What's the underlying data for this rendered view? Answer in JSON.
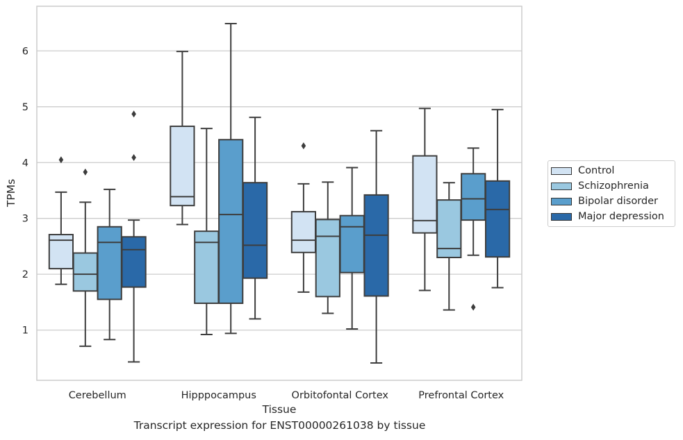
{
  "caption": "Transcript expression for ENST00000261038 by tissue",
  "chart_data": {
    "type": "box",
    "xlabel": "Tissue",
    "ylabel": "TPMs",
    "ylim": [
      0.1,
      6.8
    ],
    "yticks": [
      1,
      2,
      3,
      4,
      5,
      6
    ],
    "grid": "horizontal",
    "legend_position": "right",
    "categories": [
      "Cerebellum",
      "Hipppocampus",
      "Orbitofontal Cortex",
      "Prefrontal Cortex"
    ],
    "series": [
      {
        "name": "Control",
        "color": "#d2e3f3",
        "boxes": [
          {
            "whislo": 1.82,
            "q1": 2.1,
            "med": 2.61,
            "q3": 2.71,
            "whishi": 3.47,
            "fliers": [
              4.05
            ]
          },
          {
            "whislo": 2.89,
            "q1": 3.23,
            "med": 3.39,
            "q3": 4.65,
            "whishi": 5.99,
            "fliers": []
          },
          {
            "whislo": 1.68,
            "q1": 2.39,
            "med": 2.61,
            "q3": 3.12,
            "whishi": 3.62,
            "fliers": [
              4.3
            ]
          },
          {
            "whislo": 1.71,
            "q1": 2.74,
            "med": 2.96,
            "q3": 4.12,
            "whishi": 4.97,
            "fliers": []
          }
        ]
      },
      {
        "name": "Schizophrenia",
        "color": "#9ac8e0",
        "boxes": [
          {
            "whislo": 0.71,
            "q1": 1.7,
            "med": 2.0,
            "q3": 2.38,
            "whishi": 3.29,
            "fliers": [
              3.83
            ]
          },
          {
            "whislo": 0.92,
            "q1": 1.48,
            "med": 2.57,
            "q3": 2.77,
            "whishi": 4.61,
            "fliers": []
          },
          {
            "whislo": 1.3,
            "q1": 1.6,
            "med": 2.68,
            "q3": 2.98,
            "whishi": 3.65,
            "fliers": []
          },
          {
            "whislo": 1.36,
            "q1": 2.3,
            "med": 2.46,
            "q3": 3.33,
            "whishi": 3.64,
            "fliers": []
          }
        ]
      },
      {
        "name": "Bipolar disorder",
        "color": "#5a9ecc",
        "boxes": [
          {
            "whislo": 0.83,
            "q1": 1.55,
            "med": 2.57,
            "q3": 2.85,
            "whishi": 3.52,
            "fliers": []
          },
          {
            "whislo": 0.94,
            "q1": 1.48,
            "med": 3.07,
            "q3": 4.41,
            "whishi": 6.49,
            "fliers": []
          },
          {
            "whislo": 1.02,
            "q1": 2.03,
            "med": 2.85,
            "q3": 3.05,
            "whishi": 3.91,
            "fliers": []
          },
          {
            "whislo": 2.34,
            "q1": 2.97,
            "med": 3.35,
            "q3": 3.8,
            "whishi": 4.26,
            "fliers": [
              1.41
            ]
          }
        ]
      },
      {
        "name": "Major depression",
        "color": "#2a69a8",
        "boxes": [
          {
            "whislo": 0.43,
            "q1": 1.77,
            "med": 2.44,
            "q3": 2.67,
            "whishi": 2.97,
            "fliers": [
              4.09,
              4.87
            ]
          },
          {
            "whislo": 1.2,
            "q1": 1.93,
            "med": 2.52,
            "q3": 3.64,
            "whishi": 4.81,
            "fliers": []
          },
          {
            "whislo": 0.41,
            "q1": 1.61,
            "med": 2.7,
            "q3": 3.42,
            "whishi": 4.57,
            "fliers": []
          },
          {
            "whislo": 1.76,
            "q1": 2.31,
            "med": 3.16,
            "q3": 3.67,
            "whishi": 4.95,
            "fliers": []
          }
        ]
      }
    ]
  }
}
